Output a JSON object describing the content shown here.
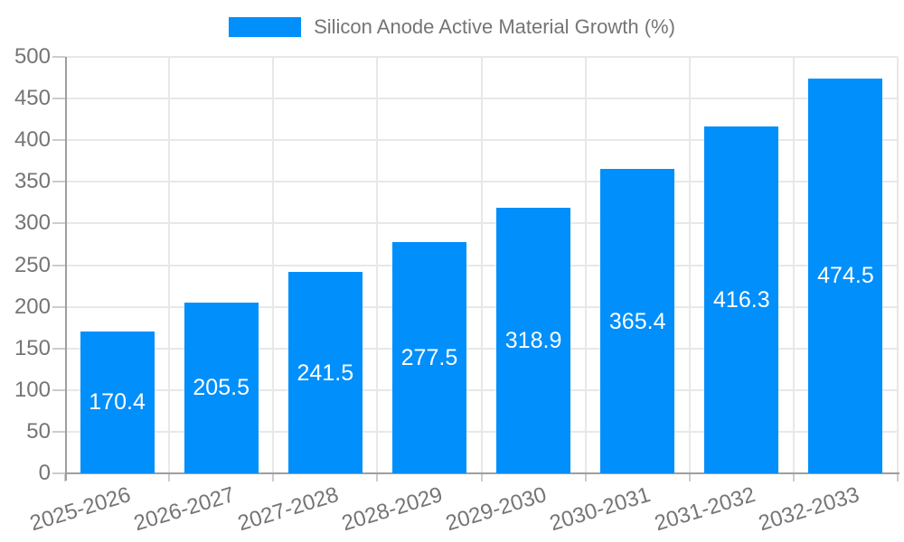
{
  "chart_data": {
    "type": "bar",
    "title": "",
    "legend": {
      "label": "Silicon Anode Active Material Growth (%)",
      "position": "top"
    },
    "categories": [
      "2025-2026",
      "2026-2027",
      "2027-2028",
      "2028-2029",
      "2029-2030",
      "2030-2031",
      "2031-2032",
      "2032-2033"
    ],
    "series": [
      {
        "name": "Silicon Anode Active Material Growth (%)",
        "values": [
          170.4,
          205.5,
          241.5,
          277.5,
          318.9,
          365.4,
          416.3,
          474.5
        ]
      }
    ],
    "value_labels": [
      "170.4",
      "205.5",
      "241.5",
      "277.5",
      "318.9",
      "365.4",
      "416.3",
      "474.5"
    ],
    "xlabel": "",
    "ylabel": "",
    "ylim": [
      0,
      500
    ],
    "yticks": [
      0,
      50,
      100,
      150,
      200,
      250,
      300,
      350,
      400,
      450,
      500
    ],
    "grid": true,
    "x_label_rotation_deg": -17,
    "colors": {
      "bar": "#008FFB",
      "value_label": "#FFFFFF",
      "axis_label": "#757575",
      "grid": "#E8E8E8",
      "axis_line": "#9E9E9E",
      "tick": "#CCCCCC",
      "background": "#FFFFFF"
    }
  }
}
